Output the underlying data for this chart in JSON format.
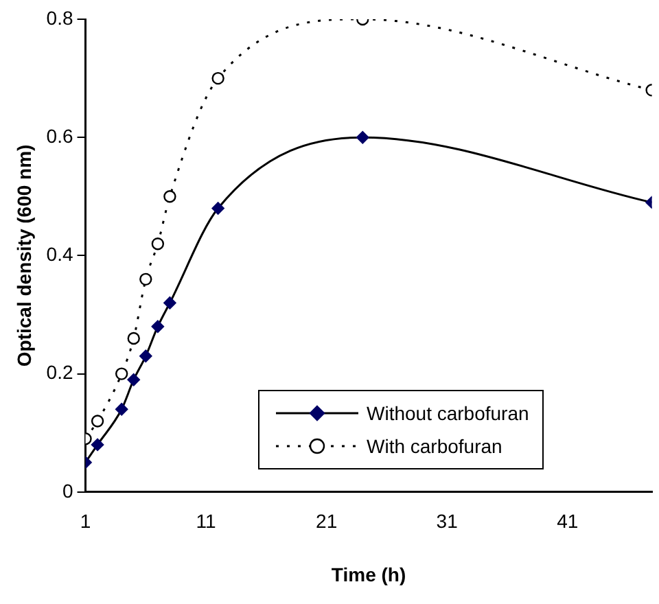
{
  "chart_data": {
    "type": "line",
    "xlabel": "Time (h)",
    "ylabel": "Optical density (600 nm)",
    "x": [
      1,
      2,
      4,
      5,
      6,
      7,
      8,
      12,
      24,
      48
    ],
    "series": [
      {
        "name": "Without carbofuran",
        "color": "#000000",
        "marker": "diamond",
        "line_style": "solid",
        "values": [
          0.05,
          0.08,
          0.14,
          0.19,
          0.23,
          0.28,
          0.32,
          0.48,
          0.6,
          0.49
        ]
      },
      {
        "name": "With carbofuran",
        "color": "#000000",
        "marker": "circle",
        "line_style": "dotted",
        "values": [
          0.09,
          0.12,
          0.2,
          0.26,
          0.36,
          0.42,
          0.5,
          0.7,
          0.8,
          0.68
        ]
      }
    ],
    "xlim": [
      1,
      48
    ],
    "xticks": [
      1,
      11,
      21,
      31,
      41
    ],
    "ylim": [
      0,
      0.8
    ],
    "yticks": [
      0,
      0.2,
      0.4,
      0.6,
      0.8
    ],
    "grid": false,
    "legend": "bottom right"
  }
}
